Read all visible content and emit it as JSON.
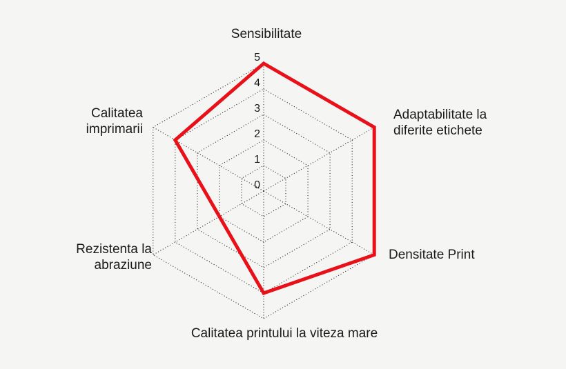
{
  "page": {
    "background_color": "#f5f5f3",
    "text_color": "#1a1a1a",
    "grid_color": "#2b2b2b",
    "series_color": "#e8111a"
  },
  "chart_data": {
    "type": "radar",
    "categories": [
      "Sensibilitate",
      "Adaptabilitate la diferite etichete",
      "Densitate Print",
      "Calitatea printului la viteza mare",
      "Rezistenta la abraziune",
      "Calitatea imprimarii"
    ],
    "series": [
      {
        "values": [
          5,
          5,
          5,
          4,
          2,
          4
        ],
        "color": "#e8111a"
      }
    ],
    "axis_range": [
      0,
      5
    ],
    "tick_labels": [
      "0",
      "1",
      "2",
      "3",
      "4",
      "5"
    ],
    "rings": [
      1,
      2,
      3,
      4,
      5
    ],
    "grid_style": "dotted hexagonal rings with dotted spokes",
    "legend_position": "none",
    "title": ""
  },
  "labels": {
    "top": "Sensibilitate",
    "top_right_line1": "Adaptabilitate la",
    "top_right_line2": "diferite etichete",
    "right": "Densitate Print",
    "bottom": "Calitatea printului la viteza mare",
    "bottom_left_line1": "Rezistenta la",
    "bottom_left_line2": "abraziune",
    "top_left_line1": "Calitatea",
    "top_left_line2": "imprimarii"
  }
}
